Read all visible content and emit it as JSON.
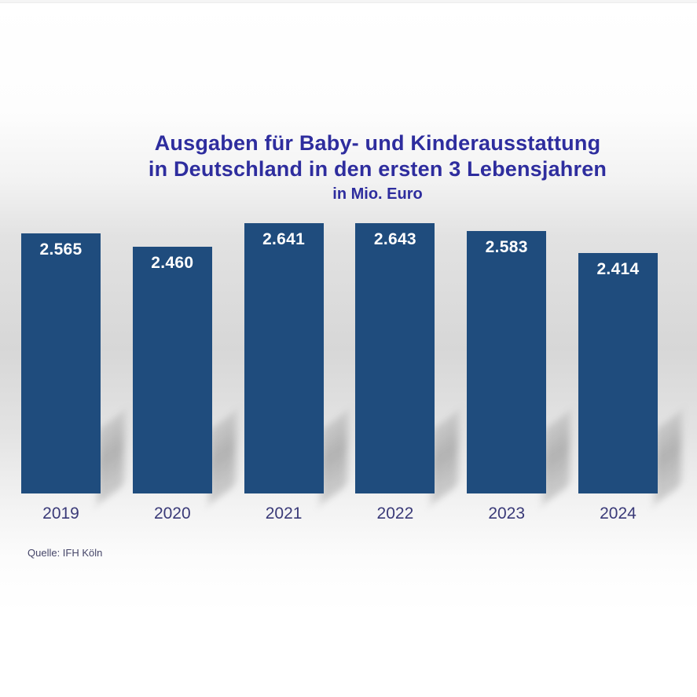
{
  "colors": {
    "bar": "#1F4C7D",
    "title": "#2E2D9E",
    "year_label": "#3A3A78",
    "value_label": "#FFFFFF",
    "source": "#454568"
  },
  "chart_data": {
    "type": "bar",
    "title_lines": [
      "Ausgaben für Baby- und Kinderausstattung",
      "in Deutschland in den ersten 3 Lebensjahren"
    ],
    "subtitle": "in Mio. Euro",
    "unit": "Mio. Euro",
    "categories": [
      "2019",
      "2020",
      "2021",
      "2022",
      "2023",
      "2024"
    ],
    "values": [
      2565,
      2460,
      2641,
      2643,
      2583,
      2414
    ],
    "value_labels": [
      "2.565",
      "2.460",
      "2.641",
      "2.643",
      "2.583",
      "2.414"
    ],
    "ylim": [
      560,
      2680
    ],
    "grid": false,
    "legend": "none",
    "value_label_position": "inside-top",
    "source": "Quelle: IFH Köln"
  }
}
